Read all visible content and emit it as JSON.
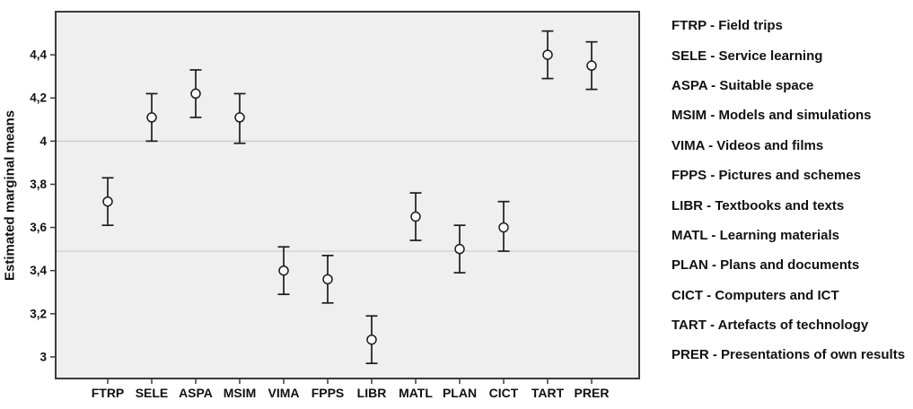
{
  "figure": {
    "background": "#ffffff"
  },
  "chart_data": {
    "type": "scatter",
    "subtype": "means-with-error-bars",
    "title": "",
    "xlabel": "",
    "ylabel": "Estimated marginal means",
    "categories": [
      "FTRP",
      "SELE",
      "ASPA",
      "MSIM",
      "VIMA",
      "FPPS",
      "LIBR",
      "MATL",
      "PLAN",
      "CICT",
      "TART",
      "PRER"
    ],
    "series": [
      {
        "name": "Estimated marginal means",
        "means": [
          3.72,
          4.11,
          4.22,
          4.11,
          3.4,
          3.36,
          3.08,
          3.65,
          3.5,
          3.6,
          4.4,
          4.35
        ],
        "ci_low": [
          3.61,
          4.0,
          4.11,
          3.99,
          3.29,
          3.25,
          2.97,
          3.54,
          3.39,
          3.49,
          4.29,
          4.24
        ],
        "ci_high": [
          3.83,
          4.22,
          4.33,
          4.22,
          3.51,
          3.47,
          3.19,
          3.76,
          3.61,
          3.72,
          4.51,
          4.46
        ]
      }
    ],
    "ylim": [
      2.9,
      4.6
    ],
    "yticks": {
      "values": [
        3,
        3.2,
        3.4,
        3.6,
        3.8,
        4,
        4.2,
        4.4
      ],
      "labels": [
        "3",
        "3,2",
        "3,4",
        "3,6",
        "3,8",
        "4",
        "4,2",
        "4,4"
      ]
    },
    "reference_lines": [
      4.0,
      3.49
    ],
    "grid": "horizontal-reference-lines-only",
    "legend_position": "right-of-plot",
    "marker": "open-circle",
    "colors": {
      "plot_background": "#efefef",
      "frame": "#3a3a3a",
      "gridline": "#c9c9c9",
      "error_bar": "#1c1c1c",
      "marker_fill": "#fbfbfb",
      "text": "#111111"
    }
  },
  "legend": {
    "items": [
      "FTRP - Field trips",
      "SELE - Service learning",
      "ASPA - Suitable space",
      "MSIM - Models and simulations",
      "VIMA - Videos and films",
      "FPPS - Pictures and schemes",
      "LIBR - Textbooks and texts",
      "MATL - Learning materials",
      "PLAN - Plans and documents",
      "CICT - Computers and ICT",
      "TART - Artefacts of technology",
      "PRER - Presentations of own results"
    ]
  }
}
